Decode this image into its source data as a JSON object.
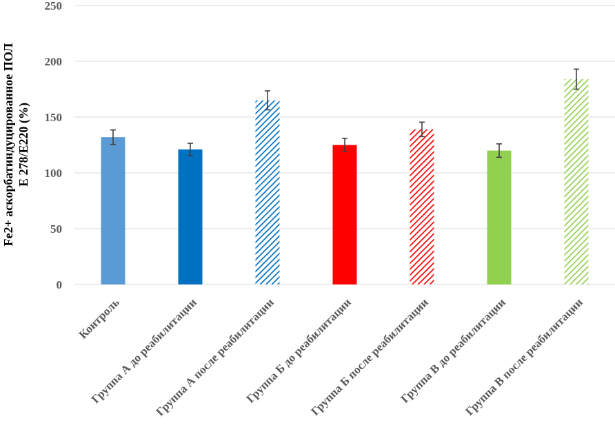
{
  "chart_data": {
    "type": "bar",
    "ylabel_lines": [
      "Fe2+ аскорбатиндуцированное ПОЛ",
      "Е 278/Е220 (%)"
    ],
    "ylim": [
      0,
      250
    ],
    "yticks": [
      0,
      50,
      100,
      150,
      200,
      250
    ],
    "grid": true,
    "categories": [
      "Контроль",
      "Группа А до реабилитации",
      "Группа А после реабилитации",
      "Группа Б до реабилитации",
      "Группа Б после реабилитации",
      "Группа В до реабилитации",
      "Группа В после реабилитации"
    ],
    "values": [
      132,
      121,
      165,
      125,
      139,
      120,
      184
    ],
    "errors": [
      6.5,
      5.5,
      8.5,
      6,
      6.5,
      6,
      9
    ],
    "colors": [
      "#5b9bd5",
      "#0070c0",
      "#0070c0",
      "#ff0000",
      "#ff0000",
      "#92d050",
      "#92d050"
    ],
    "patterns": [
      "solid",
      "solid",
      "hatch",
      "solid",
      "hatch",
      "solid",
      "hatch"
    ]
  }
}
